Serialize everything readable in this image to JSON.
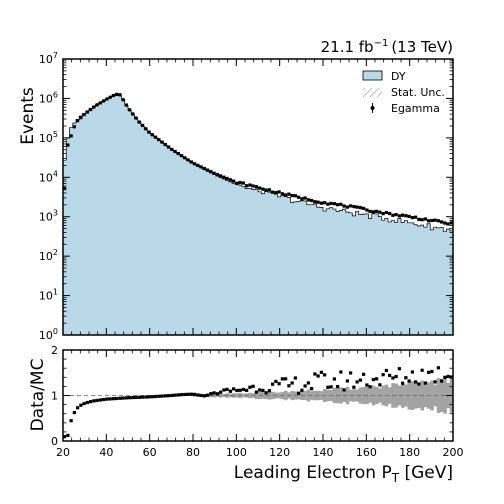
{
  "chart_data": [
    {
      "type": "histogram",
      "panel": "main",
      "ylabel": "Events",
      "yscale": "log",
      "ylim": [
        1,
        10000000
      ],
      "xlim": [
        20,
        200
      ],
      "lumi_label": "21.1 fb",
      "lumi_exponent": "−1",
      "lumi_suffix": "(13 TeV)",
      "legend": {
        "position": "top-right",
        "entries": [
          {
            "label": "DY",
            "kind": "filled"
          },
          {
            "label": "Stat. Unc.",
            "kind": "hatch"
          },
          {
            "label": "Egamma",
            "kind": "marker"
          }
        ]
      },
      "colors": {
        "dy_fill": "#b9d9e9",
        "unc_band": "#a3a3a3",
        "data": "#000000"
      },
      "y_tick_labels": [
        {
          "value": 1,
          "base": "10",
          "exp": "0"
        },
        {
          "value": 10,
          "base": "10",
          "exp": "1"
        },
        {
          "value": 100,
          "base": "10",
          "exp": "2"
        },
        {
          "value": 1000,
          "base": "10",
          "exp": "3"
        },
        {
          "value": 10000,
          "base": "10",
          "exp": "4"
        },
        {
          "value": 100000,
          "base": "10",
          "exp": "5"
        },
        {
          "value": 1000000,
          "base": "10",
          "exp": "6"
        },
        {
          "value": 10000000,
          "base": "10",
          "exp": "7"
        }
      ],
      "mc_anchors": [
        [
          20,
          2500
        ],
        [
          21,
          60000
        ],
        [
          24,
          200000
        ],
        [
          28,
          350000
        ],
        [
          32,
          520000
        ],
        [
          36,
          720000
        ],
        [
          40,
          950000
        ],
        [
          44,
          1200000
        ],
        [
          46,
          1250000
        ],
        [
          48,
          900000
        ],
        [
          50,
          560000
        ],
        [
          55,
          250000
        ],
        [
          60,
          130000
        ],
        [
          70,
          50000
        ],
        [
          80,
          22000
        ],
        [
          90,
          11500
        ],
        [
          100,
          6500
        ],
        [
          110,
          4500
        ],
        [
          120,
          3300
        ],
        [
          130,
          2300
        ],
        [
          140,
          1700
        ],
        [
          150,
          1350
        ],
        [
          160,
          1100
        ],
        [
          170,
          900
        ],
        [
          180,
          700
        ],
        [
          190,
          560
        ],
        [
          200,
          450
        ]
      ],
      "data_anchors": [
        [
          20,
          1200
        ],
        [
          22,
          60000
        ],
        [
          26,
          250000
        ],
        [
          30,
          400000
        ],
        [
          35,
          650000
        ],
        [
          40,
          950000
        ],
        [
          44,
          1250000
        ],
        [
          46,
          1300000
        ],
        [
          48,
          880000
        ],
        [
          50,
          580000
        ],
        [
          55,
          260000
        ],
        [
          60,
          135000
        ],
        [
          70,
          52000
        ],
        [
          80,
          23000
        ],
        [
          90,
          12500
        ],
        [
          100,
          7500
        ],
        [
          110,
          5500
        ],
        [
          120,
          4000
        ],
        [
          130,
          3000
        ],
        [
          140,
          2300
        ],
        [
          150,
          1900
        ],
        [
          160,
          1500
        ],
        [
          170,
          1200
        ],
        [
          180,
          1000
        ],
        [
          190,
          800
        ],
        [
          200,
          650
        ]
      ],
      "bin_width": 1.5
    },
    {
      "type": "scatter",
      "panel": "ratio",
      "ylabel": "Data/MC",
      "xlabel": "Leading Electron P",
      "xlabel_sub": "T",
      "xlabel_suffix": " [GeV]",
      "ylim": [
        0,
        2
      ],
      "xlim": [
        20,
        200
      ],
      "x_ticks": [
        20,
        40,
        60,
        80,
        100,
        120,
        140,
        160,
        180,
        200
      ],
      "y_ticks": [
        0,
        1,
        2
      ],
      "reference_line": 1,
      "ratio_anchors": [
        [
          20.5,
          0.1
        ],
        [
          22,
          0.07
        ],
        [
          24,
          0.5
        ],
        [
          26,
          0.7
        ],
        [
          28,
          0.78
        ],
        [
          30,
          0.83
        ],
        [
          34,
          0.88
        ],
        [
          40,
          0.92
        ],
        [
          50,
          0.95
        ],
        [
          60,
          0.97
        ],
        [
          70,
          1.0
        ],
        [
          75,
          1.02
        ],
        [
          80,
          1.03
        ],
        [
          85,
          0.99
        ],
        [
          90,
          1.05
        ],
        [
          95,
          1.1
        ],
        [
          100,
          1.12
        ],
        [
          110,
          1.18
        ],
        [
          120,
          1.2
        ],
        [
          130,
          1.25
        ],
        [
          140,
          1.3
        ],
        [
          150,
          1.32
        ],
        [
          160,
          1.36
        ],
        [
          170,
          1.38
        ],
        [
          180,
          1.42
        ],
        [
          190,
          1.46
        ],
        [
          200,
          1.5
        ]
      ],
      "band_anchors": [
        [
          80,
          0.02
        ],
        [
          100,
          0.05
        ],
        [
          120,
          0.08
        ],
        [
          140,
          0.12
        ],
        [
          160,
          0.18
        ],
        [
          180,
          0.25
        ],
        [
          200,
          0.35
        ]
      ]
    }
  ]
}
